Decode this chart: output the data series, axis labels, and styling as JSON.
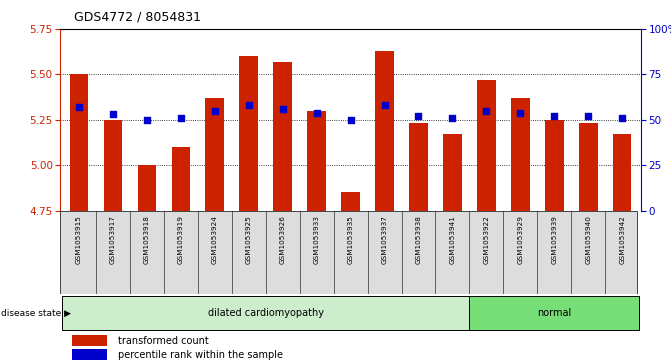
{
  "title": "GDS4772 / 8054831",
  "samples": [
    "GSM1053915",
    "GSM1053917",
    "GSM1053918",
    "GSM1053919",
    "GSM1053924",
    "GSM1053925",
    "GSM1053926",
    "GSM1053933",
    "GSM1053935",
    "GSM1053937",
    "GSM1053938",
    "GSM1053941",
    "GSM1053922",
    "GSM1053929",
    "GSM1053939",
    "GSM1053940",
    "GSM1053942"
  ],
  "bar_values": [
    5.5,
    5.25,
    5.0,
    5.1,
    5.37,
    5.6,
    5.57,
    5.3,
    4.85,
    5.63,
    5.23,
    5.17,
    5.47,
    5.37,
    5.25,
    5.23,
    5.17
  ],
  "dot_values": [
    57,
    53,
    50,
    51,
    55,
    58,
    56,
    54,
    50,
    58,
    52,
    51,
    55,
    54,
    52,
    52,
    51
  ],
  "disease_state": [
    "dilated cardiomyopathy",
    "dilated cardiomyopathy",
    "dilated cardiomyopathy",
    "dilated cardiomyopathy",
    "dilated cardiomyopathy",
    "dilated cardiomyopathy",
    "dilated cardiomyopathy",
    "dilated cardiomyopathy",
    "dilated cardiomyopathy",
    "dilated cardiomyopathy",
    "dilated cardiomyopathy",
    "dilated cardiomyopathy",
    "normal",
    "normal",
    "normal",
    "normal",
    "normal"
  ],
  "ylim_left": [
    4.75,
    5.75
  ],
  "ylim_right": [
    0,
    100
  ],
  "yticks_left": [
    4.75,
    5.0,
    5.25,
    5.5,
    5.75
  ],
  "yticks_right": [
    0,
    25,
    50,
    75,
    100
  ],
  "bar_color": "#CC2200",
  "dot_color": "#0000CC",
  "dilated_color": "#CCEECC",
  "normal_color": "#77DD77",
  "bar_bottom": 4.75,
  "label_bg_color": "#DDDDDD",
  "plot_bg": "white"
}
